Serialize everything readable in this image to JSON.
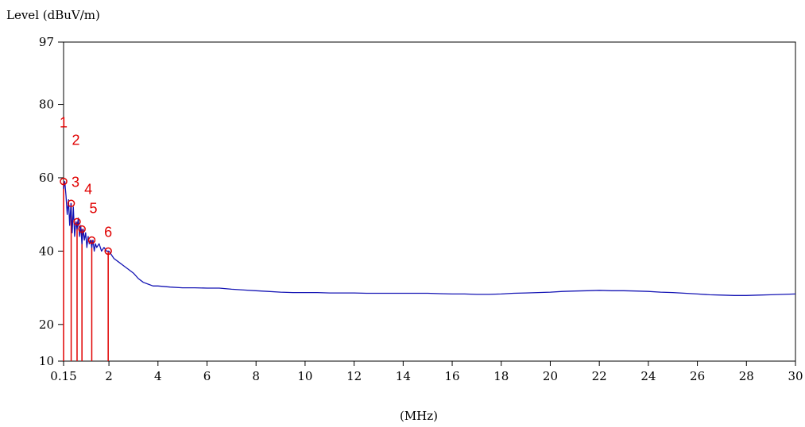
{
  "chart_data": {
    "type": "line",
    "ylabel": "Level (dBuV/m)",
    "xlabel": "(MHz)",
    "xlim": [
      0.15,
      30
    ],
    "ylim": [
      10,
      97
    ],
    "x_ticks": [
      {
        "value": 0.15,
        "label": "0.15"
      },
      {
        "value": 2,
        "label": "2"
      },
      {
        "value": 4,
        "label": "4"
      },
      {
        "value": 6,
        "label": "6"
      },
      {
        "value": 8,
        "label": "8"
      },
      {
        "value": 10,
        "label": "10"
      },
      {
        "value": 12,
        "label": "12"
      },
      {
        "value": 14,
        "label": "14"
      },
      {
        "value": 16,
        "label": "16"
      },
      {
        "value": 18,
        "label": "18"
      },
      {
        "value": 20,
        "label": "20"
      },
      {
        "value": 22,
        "label": "22"
      },
      {
        "value": 24,
        "label": "24"
      },
      {
        "value": 26,
        "label": "26"
      },
      {
        "value": 28,
        "label": "28"
      },
      {
        "value": 30,
        "label": "30"
      }
    ],
    "y_ticks": [
      {
        "value": 10,
        "label": "10"
      },
      {
        "value": 20,
        "label": "20"
      },
      {
        "value": 40,
        "label": "40"
      },
      {
        "value": 60,
        "label": "60"
      },
      {
        "value": 80,
        "label": "80"
      },
      {
        "value": 97,
        "label": "97"
      }
    ],
    "grid": false,
    "series": [
      {
        "color": "#1414b4",
        "x": [
          0.15,
          0.2,
          0.25,
          0.3,
          0.35,
          0.4,
          0.45,
          0.5,
          0.55,
          0.6,
          0.65,
          0.7,
          0.75,
          0.8,
          0.85,
          0.9,
          0.95,
          1.0,
          1.05,
          1.1,
          1.15,
          1.2,
          1.25,
          1.3,
          1.35,
          1.4,
          1.45,
          1.5,
          1.6,
          1.7,
          1.8,
          1.9,
          2.0,
          2.2,
          2.4,
          2.6,
          2.8,
          3.0,
          3.2,
          3.4,
          3.6,
          3.8,
          4.0,
          4.5,
          5.0,
          5.5,
          6.0,
          6.5,
          7.0,
          7.5,
          8.0,
          8.5,
          9.0,
          9.5,
          10.0,
          10.5,
          11.0,
          11.5,
          12.0,
          12.5,
          13.0,
          13.5,
          14.0,
          14.5,
          15.0,
          15.5,
          16.0,
          16.5,
          17.0,
          17.5,
          18.0,
          18.5,
          19.0,
          19.5,
          20.0,
          20.5,
          21.0,
          21.5,
          22.0,
          22.5,
          23.0,
          23.5,
          24.0,
          24.5,
          25.0,
          25.5,
          26.0,
          26.5,
          27.0,
          27.5,
          28.0,
          28.5,
          29.0,
          29.5,
          30.0
        ],
        "y": [
          57,
          59,
          55,
          50,
          54,
          47,
          53,
          45,
          52,
          44,
          48,
          46,
          49,
          44,
          47,
          42,
          46,
          43,
          45,
          41,
          44,
          42,
          43,
          41,
          43,
          40,
          42,
          41,
          42,
          40,
          41,
          40,
          40,
          38,
          37,
          36,
          35,
          34,
          32.5,
          31.5,
          31,
          30.5,
          30.5,
          30.2,
          30,
          30,
          29.9,
          29.9,
          29.6,
          29.4,
          29.2,
          29,
          28.8,
          28.7,
          28.7,
          28.7,
          28.6,
          28.6,
          28.6,
          28.5,
          28.5,
          28.5,
          28.5,
          28.5,
          28.5,
          28.4,
          28.3,
          28.3,
          28.2,
          28.2,
          28.3,
          28.5,
          28.6,
          28.7,
          28.8,
          29,
          29.1,
          29.2,
          29.3,
          29.2,
          29.2,
          29.1,
          29,
          28.8,
          28.7,
          28.5,
          28.3,
          28.1,
          28,
          27.9,
          27.9,
          28,
          28.1,
          28.2,
          28.3
        ]
      }
    ],
    "markers": [
      {
        "label": "1",
        "x": 0.15,
        "y": 59,
        "color": "#e00000"
      },
      {
        "label": "2",
        "x": 0.46,
        "y": 53,
        "color": "#e00000"
      },
      {
        "label": "3",
        "x": 0.7,
        "y": 48,
        "color": "#e00000"
      },
      {
        "label": "4",
        "x": 0.9,
        "y": 46,
        "color": "#e00000"
      },
      {
        "label": "5",
        "x": 1.3,
        "y": 43,
        "color": "#e00000"
      },
      {
        "label": "6",
        "x": 1.97,
        "y": 40,
        "color": "#e00000"
      }
    ]
  }
}
